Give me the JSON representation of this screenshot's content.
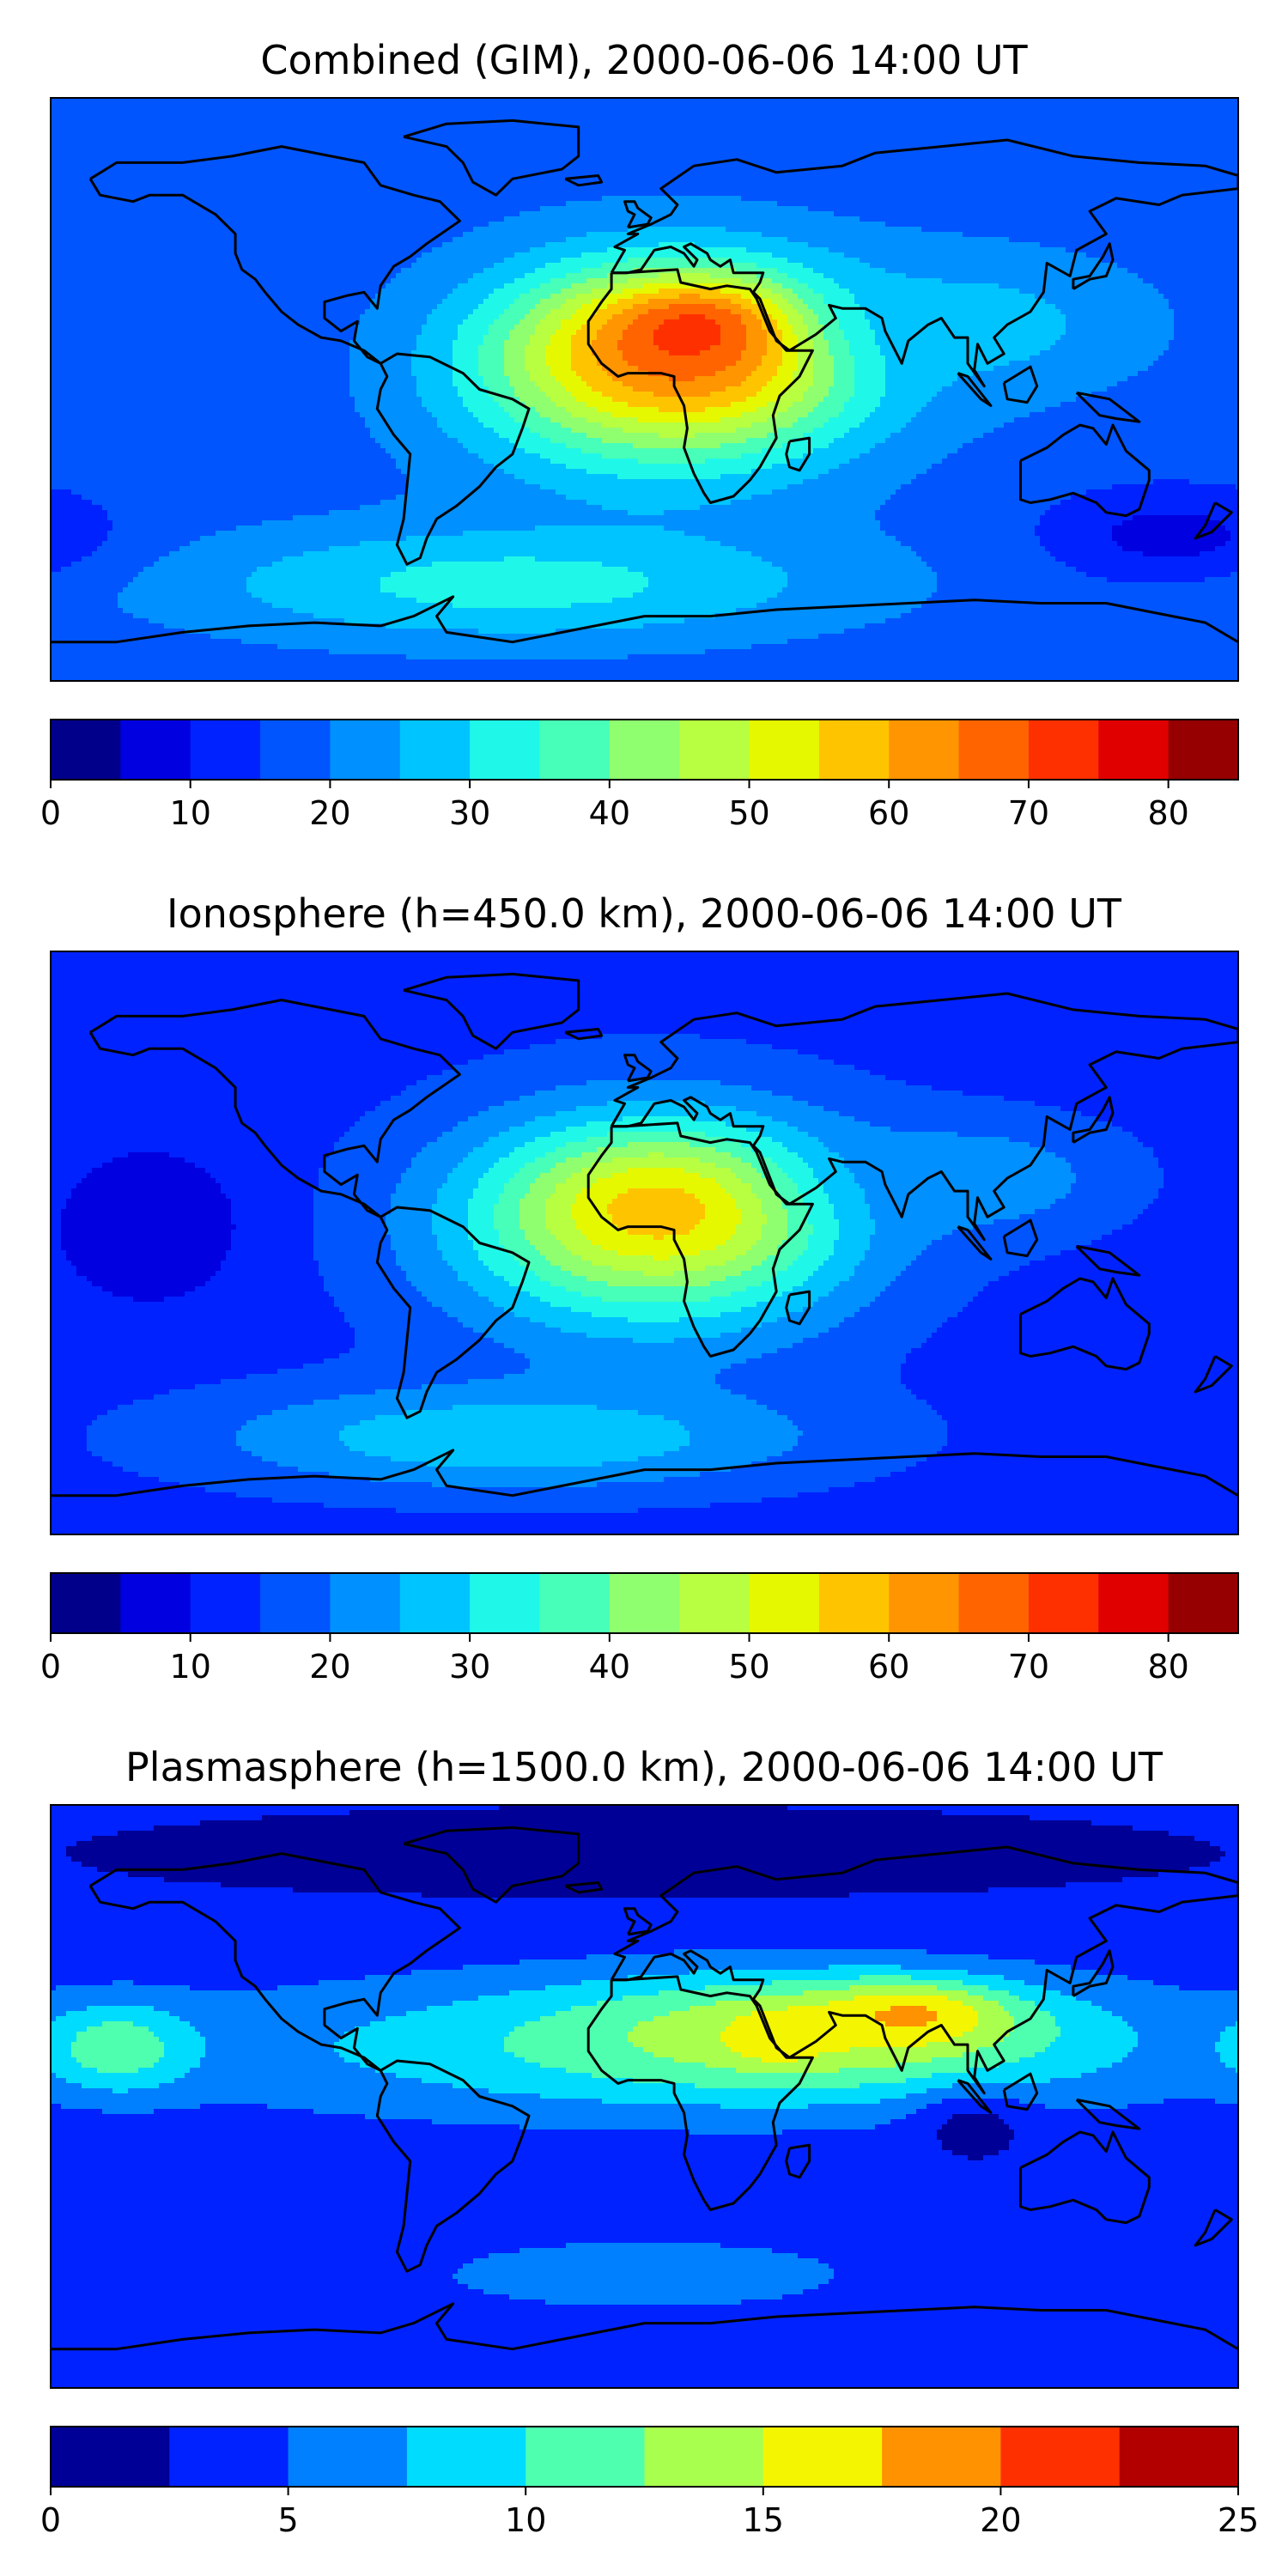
{
  "panels": [
    {
      "title": "Combined (GIM), 2000-06-06 14:00 UT",
      "colorbar": {
        "min": 0,
        "max": 85,
        "step": 5,
        "ticks": [
          "0",
          "10",
          "20",
          "30",
          "40",
          "50",
          "60",
          "70",
          "80"
        ],
        "tick_values": [
          0,
          10,
          20,
          30,
          40,
          50,
          60,
          70,
          80
        ]
      },
      "background_level": 0.2,
      "blobs": [
        {
          "lon": 5,
          "lat": 5,
          "rx": 70,
          "ry": 40,
          "level": 0.45
        },
        {
          "lon": 10,
          "lat": 10,
          "rx": 55,
          "ry": 28,
          "level": 0.65
        },
        {
          "lon": 15,
          "lat": 12,
          "rx": 40,
          "ry": 20,
          "level": 0.8
        },
        {
          "lon": 20,
          "lat": 18,
          "rx": 25,
          "ry": 12,
          "level": 0.9
        },
        {
          "lon": -40,
          "lat": -60,
          "rx": 110,
          "ry": 20,
          "level": 0.38
        },
        {
          "lon": 100,
          "lat": 20,
          "rx": 60,
          "ry": 25,
          "level": 0.32
        },
        {
          "lon": 160,
          "lat": -45,
          "rx": 40,
          "ry": 15,
          "level": 0.08
        }
      ]
    },
    {
      "title": "Ionosphere  (h=450.0 km), 2000-06-06 14:00 UT",
      "colorbar": {
        "min": 0,
        "max": 85,
        "step": 5,
        "ticks": [
          "0",
          "10",
          "20",
          "30",
          "40",
          "50",
          "60",
          "70",
          "80"
        ],
        "tick_values": [
          0,
          10,
          20,
          30,
          40,
          50,
          60,
          70,
          80
        ]
      },
      "background_level": 0.15,
      "blobs": [
        {
          "lon": 0,
          "lat": 5,
          "rx": 75,
          "ry": 42,
          "level": 0.38
        },
        {
          "lon": 5,
          "lat": 8,
          "rx": 55,
          "ry": 30,
          "level": 0.55
        },
        {
          "lon": 5,
          "lat": 10,
          "rx": 35,
          "ry": 18,
          "level": 0.68
        },
        {
          "lon": -40,
          "lat": -60,
          "rx": 100,
          "ry": 18,
          "level": 0.35
        },
        {
          "lon": 100,
          "lat": 20,
          "rx": 50,
          "ry": 20,
          "level": 0.28
        },
        {
          "lon": -150,
          "lat": 5,
          "rx": 30,
          "ry": 25,
          "level": 0.05
        }
      ]
    },
    {
      "title": "Plasmasphere (h=1500.0 km), 2000-06-06 14:00 UT",
      "colorbar": {
        "min": 0,
        "max": 25,
        "step": 2.5,
        "ticks": [
          "0",
          "5",
          "10",
          "15",
          "20",
          "25"
        ],
        "tick_values": [
          0,
          5,
          10,
          15,
          20,
          25
        ]
      },
      "background_level": 0.12,
      "blobs": [
        {
          "lon": 10,
          "lat": 15,
          "rx": 180,
          "ry": 25,
          "level": 0.38
        },
        {
          "lon": 50,
          "lat": 20,
          "rx": 80,
          "ry": 18,
          "level": 0.6
        },
        {
          "lon": 80,
          "lat": 25,
          "rx": 30,
          "ry": 10,
          "level": 0.72
        },
        {
          "lon": 40,
          "lat": 18,
          "rx": 15,
          "ry": 8,
          "level": 0.7
        },
        {
          "lon": -160,
          "lat": 15,
          "rx": 25,
          "ry": 15,
          "level": 0.48
        },
        {
          "lon": 0,
          "lat": -55,
          "rx": 70,
          "ry": 12,
          "level": 0.3
        },
        {
          "lon": 100,
          "lat": -10,
          "rx": 20,
          "ry": 12,
          "level": 0.05
        },
        {
          "lon": 0,
          "lat": 75,
          "rx": 180,
          "ry": 15,
          "level": 0.05
        }
      ]
    }
  ],
  "colors": {
    "jet17": [
      "#00008b",
      "#0000e0",
      "#0022ff",
      "#0055ff",
      "#0090ff",
      "#00c4ff",
      "#1ff8e8",
      "#47ffb8",
      "#8fff70",
      "#b7ff40",
      "#e6f800",
      "#ffc400",
      "#ff9500",
      "#ff6400",
      "#ff3000",
      "#e00000",
      "#960000"
    ],
    "jet10": [
      "#000096",
      "#0022ff",
      "#0080ff",
      "#00dcfe",
      "#4effb0",
      "#a8ff4e",
      "#f4f500",
      "#ff9200",
      "#ff3000",
      "#b20000"
    ],
    "coastline": "#000000"
  }
}
